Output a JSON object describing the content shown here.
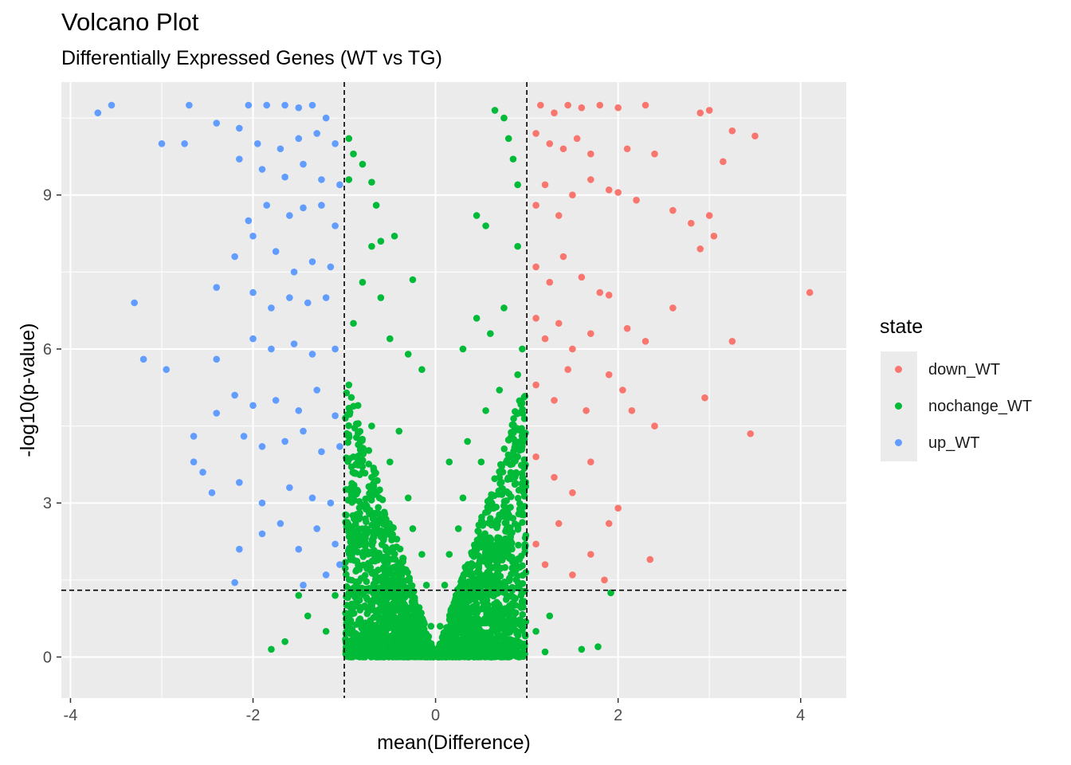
{
  "title": "Volcano Plot",
  "subtitle": "Differentially Expressed Genes (WT vs TG)",
  "chart_data": {
    "type": "scatter",
    "xlabel": "mean(Difference)",
    "ylabel": "-log10(p-value)",
    "xlim": [
      -4.1,
      4.5
    ],
    "ylim": [
      -0.8,
      11.2
    ],
    "xticks": [
      -4,
      -2,
      0,
      2,
      4
    ],
    "yticks": [
      0,
      3,
      6,
      9
    ],
    "grid": true,
    "legend_position": "right",
    "legend_title": "state",
    "reference_lines": {
      "vertical": [
        -1,
        1
      ],
      "horizontal": [
        1.3
      ]
    },
    "series": [
      {
        "name": "down_WT",
        "color": "#F8766D",
        "points": [
          [
            1.15,
            10.75
          ],
          [
            1.3,
            10.6
          ],
          [
            1.45,
            10.75
          ],
          [
            1.6,
            10.7
          ],
          [
            1.8,
            10.75
          ],
          [
            2.0,
            10.7
          ],
          [
            2.3,
            10.75
          ],
          [
            2.9,
            10.6
          ],
          [
            3.0,
            10.65
          ],
          [
            1.1,
            10.2
          ],
          [
            1.25,
            10.0
          ],
          [
            1.4,
            9.9
          ],
          [
            1.55,
            10.1
          ],
          [
            1.7,
            9.8
          ],
          [
            2.1,
            9.9
          ],
          [
            2.4,
            9.8
          ],
          [
            3.15,
            9.65
          ],
          [
            3.25,
            10.25
          ],
          [
            3.5,
            10.15
          ],
          [
            1.1,
            8.8
          ],
          [
            1.2,
            9.2
          ],
          [
            1.35,
            8.6
          ],
          [
            1.5,
            9.0
          ],
          [
            1.7,
            9.3
          ],
          [
            1.9,
            9.1
          ],
          [
            2.0,
            9.05
          ],
          [
            2.2,
            8.9
          ],
          [
            2.6,
            8.7
          ],
          [
            2.8,
            8.45
          ],
          [
            3.0,
            8.6
          ],
          [
            3.05,
            8.2
          ],
          [
            2.9,
            7.95
          ],
          [
            1.1,
            7.6
          ],
          [
            1.25,
            7.3
          ],
          [
            1.4,
            7.8
          ],
          [
            1.6,
            7.4
          ],
          [
            1.8,
            7.1
          ],
          [
            1.9,
            7.05
          ],
          [
            4.1,
            7.1
          ],
          [
            1.1,
            6.6
          ],
          [
            1.2,
            6.2
          ],
          [
            1.35,
            6.5
          ],
          [
            1.5,
            6.0
          ],
          [
            1.7,
            6.3
          ],
          [
            2.1,
            6.4
          ],
          [
            2.3,
            6.15
          ],
          [
            2.6,
            6.8
          ],
          [
            3.25,
            6.15
          ],
          [
            1.1,
            5.3
          ],
          [
            1.3,
            5.0
          ],
          [
            1.45,
            5.6
          ],
          [
            1.65,
            4.8
          ],
          [
            1.9,
            5.5
          ],
          [
            2.05,
            5.2
          ],
          [
            2.15,
            4.8
          ],
          [
            2.4,
            4.5
          ],
          [
            2.95,
            5.05
          ],
          [
            3.45,
            4.35
          ],
          [
            1.1,
            3.9
          ],
          [
            1.3,
            3.5
          ],
          [
            1.5,
            3.2
          ],
          [
            1.7,
            3.8
          ],
          [
            1.9,
            2.6
          ],
          [
            2.0,
            2.9
          ],
          [
            2.35,
            1.9
          ],
          [
            1.1,
            2.2
          ],
          [
            1.2,
            1.8
          ],
          [
            1.35,
            2.6
          ],
          [
            1.5,
            1.6
          ],
          [
            1.7,
            2.0
          ],
          [
            1.85,
            1.5
          ]
        ]
      },
      {
        "name": "nochange_WT",
        "color": "#00BA38",
        "points": [
          [
            -0.95,
            10.1
          ],
          [
            -0.9,
            9.8
          ],
          [
            -0.8,
            9.6
          ],
          [
            -0.95,
            9.3
          ],
          [
            -0.7,
            9.25
          ],
          [
            -0.65,
            8.8
          ],
          [
            -0.7,
            8.0
          ],
          [
            -0.6,
            8.1
          ],
          [
            -0.45,
            8.2
          ],
          [
            -0.25,
            7.35
          ],
          [
            0.65,
            10.65
          ],
          [
            0.75,
            10.5
          ],
          [
            0.8,
            10.1
          ],
          [
            0.85,
            9.7
          ],
          [
            0.9,
            9.2
          ],
          [
            0.45,
            8.6
          ],
          [
            0.55,
            8.4
          ],
          [
            0.9,
            8.0
          ],
          [
            -0.8,
            7.3
          ],
          [
            -0.6,
            7.0
          ],
          [
            -0.9,
            6.5
          ],
          [
            -0.5,
            6.2
          ],
          [
            -0.3,
            5.9
          ],
          [
            -0.15,
            5.6
          ],
          [
            -0.95,
            5.3
          ],
          [
            -0.85,
            4.9
          ],
          [
            -0.7,
            4.5
          ],
          [
            -0.4,
            4.4
          ],
          [
            0.3,
            6.0
          ],
          [
            0.45,
            6.6
          ],
          [
            0.6,
            6.3
          ],
          [
            0.75,
            6.8
          ],
          [
            0.95,
            6.0
          ],
          [
            0.9,
            5.5
          ],
          [
            0.7,
            5.2
          ],
          [
            0.55,
            4.8
          ],
          [
            0.35,
            4.2
          ],
          [
            0.15,
            3.8
          ],
          [
            -0.9,
            3.9
          ],
          [
            -0.7,
            3.5
          ],
          [
            -0.5,
            3.8
          ],
          [
            -0.3,
            3.1
          ],
          [
            -0.25,
            2.5
          ],
          [
            -0.15,
            2.0
          ],
          [
            -0.1,
            1.4
          ],
          [
            -0.05,
            0.6
          ],
          [
            -0.6,
            2.7
          ],
          [
            -0.8,
            2.2
          ],
          [
            0.9,
            3.9
          ],
          [
            0.7,
            3.5
          ],
          [
            0.5,
            3.8
          ],
          [
            0.3,
            3.1
          ],
          [
            0.25,
            2.5
          ],
          [
            0.15,
            2.0
          ],
          [
            0.1,
            1.4
          ],
          [
            0.05,
            0.6
          ],
          [
            0.6,
            2.7
          ],
          [
            0.8,
            2.2
          ],
          [
            -0.95,
            1.0
          ],
          [
            -0.8,
            0.6
          ],
          [
            -0.6,
            0.2
          ],
          [
            -0.4,
            0.9
          ],
          [
            -0.2,
            0.3
          ],
          [
            -1.2,
            0.5
          ],
          [
            -1.4,
            0.8
          ],
          [
            -1.65,
            0.3
          ],
          [
            -1.8,
            0.15
          ],
          [
            -1.5,
            1.2
          ],
          [
            -1.1,
            1.2
          ],
          [
            0.95,
            1.0
          ],
          [
            0.8,
            0.6
          ],
          [
            0.6,
            0.2
          ],
          [
            0.4,
            0.9
          ],
          [
            0.2,
            0.3
          ],
          [
            1.1,
            0.5
          ],
          [
            1.25,
            0.8
          ],
          [
            1.2,
            0.1
          ],
          [
            1.6,
            0.15
          ],
          [
            1.78,
            0.2
          ],
          [
            1.92,
            1.25
          ]
        ]
      },
      {
        "name": "up_WT",
        "color": "#619CFF",
        "points": [
          [
            -3.7,
            10.6
          ],
          [
            -3.55,
            10.75
          ],
          [
            -2.7,
            10.75
          ],
          [
            -2.4,
            10.4
          ],
          [
            -2.05,
            10.75
          ],
          [
            -1.85,
            10.75
          ],
          [
            -1.65,
            10.75
          ],
          [
            -1.5,
            10.7
          ],
          [
            -1.35,
            10.75
          ],
          [
            -1.2,
            10.5
          ],
          [
            -3.0,
            10.0
          ],
          [
            -2.75,
            10.0
          ],
          [
            -2.15,
            10.3
          ],
          [
            -1.95,
            10.0
          ],
          [
            -1.7,
            9.9
          ],
          [
            -1.5,
            10.1
          ],
          [
            -1.3,
            10.2
          ],
          [
            -1.1,
            10.0
          ],
          [
            -2.15,
            9.7
          ],
          [
            -1.9,
            9.5
          ],
          [
            -1.65,
            9.35
          ],
          [
            -1.45,
            9.6
          ],
          [
            -1.25,
            9.3
          ],
          [
            -1.05,
            9.2
          ],
          [
            -2.05,
            8.5
          ],
          [
            -1.85,
            8.8
          ],
          [
            -1.6,
            8.6
          ],
          [
            -1.45,
            8.75
          ],
          [
            -1.25,
            8.8
          ],
          [
            -1.1,
            8.4
          ],
          [
            -2.2,
            7.8
          ],
          [
            -2.0,
            8.2
          ],
          [
            -1.75,
            7.9
          ],
          [
            -1.55,
            7.5
          ],
          [
            -1.35,
            7.7
          ],
          [
            -1.15,
            7.6
          ],
          [
            -3.3,
            6.9
          ],
          [
            -2.4,
            7.2
          ],
          [
            -2.0,
            7.1
          ],
          [
            -1.8,
            6.8
          ],
          [
            -1.6,
            7.0
          ],
          [
            -1.4,
            6.9
          ],
          [
            -1.2,
            7.0
          ],
          [
            -3.2,
            5.8
          ],
          [
            -2.95,
            5.6
          ],
          [
            -2.4,
            5.8
          ],
          [
            -2.0,
            6.2
          ],
          [
            -1.8,
            6.0
          ],
          [
            -1.55,
            6.1
          ],
          [
            -1.35,
            5.9
          ],
          [
            -1.1,
            6.0
          ],
          [
            -2.2,
            5.1
          ],
          [
            -2.0,
            4.9
          ],
          [
            -1.75,
            5.0
          ],
          [
            -1.5,
            4.8
          ],
          [
            -1.3,
            5.2
          ],
          [
            -1.1,
            4.7
          ],
          [
            -2.65,
            4.3
          ],
          [
            -2.4,
            4.75
          ],
          [
            -2.1,
            4.3
          ],
          [
            -1.9,
            4.1
          ],
          [
            -1.65,
            4.2
          ],
          [
            -1.45,
            4.4
          ],
          [
            -1.25,
            4.0
          ],
          [
            -1.05,
            4.1
          ],
          [
            -2.65,
            3.8
          ],
          [
            -2.55,
            3.6
          ],
          [
            -2.45,
            3.2
          ],
          [
            -2.15,
            3.4
          ],
          [
            -1.9,
            3.0
          ],
          [
            -1.6,
            3.3
          ],
          [
            -1.35,
            3.1
          ],
          [
            -1.15,
            3.0
          ],
          [
            -2.15,
            2.1
          ],
          [
            -1.9,
            2.4
          ],
          [
            -1.7,
            2.6
          ],
          [
            -1.5,
            2.1
          ],
          [
            -1.3,
            2.5
          ],
          [
            -1.1,
            2.2
          ],
          [
            -2.2,
            1.45
          ],
          [
            -1.45,
            1.4
          ],
          [
            -1.2,
            1.6
          ],
          [
            -1.05,
            1.8
          ]
        ]
      }
    ]
  }
}
